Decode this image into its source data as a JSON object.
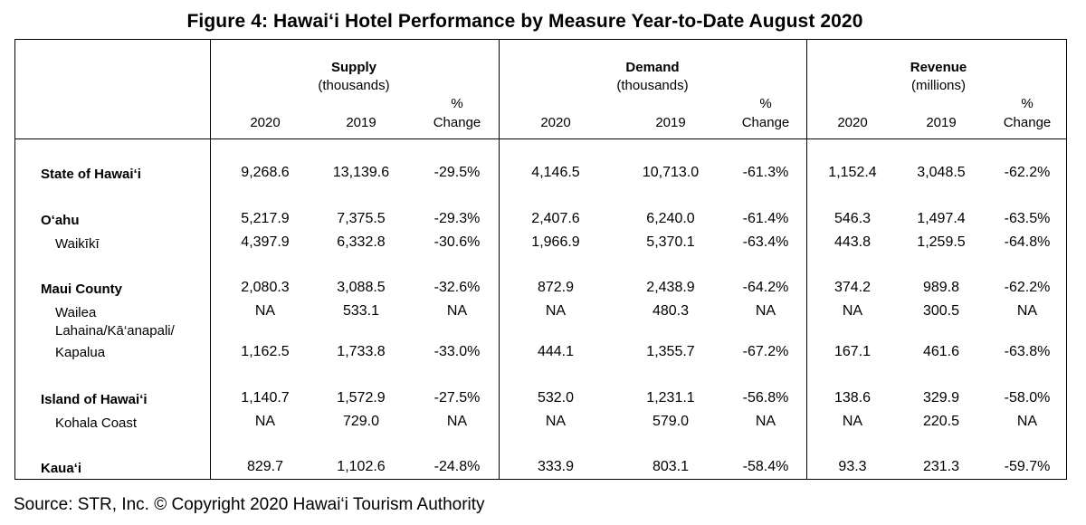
{
  "title": "Figure 4: Hawai‘i Hotel Performance by Measure Year-to-Date August 2020",
  "groups": [
    {
      "title": "Supply",
      "unit": "(thousands)"
    },
    {
      "title": "Demand",
      "unit": "(thousands)"
    },
    {
      "title": "Revenue",
      "unit": "(millions)"
    }
  ],
  "subheaders": {
    "y2020": "2020",
    "y2019": "2019",
    "pct_top": "%",
    "pct_bottom": "Change"
  },
  "rows": [
    {
      "label": "State of Hawai‘i",
      "bold": true,
      "values": [
        "9,268.6",
        "13,139.6",
        "-29.5%",
        "4,146.5",
        "10,713.0",
        "-61.3%",
        "1,152.4",
        "3,048.5",
        "-62.2%"
      ]
    },
    {
      "label": "O‘ahu",
      "bold": true,
      "values": [
        "5,217.9",
        "7,375.5",
        "-29.3%",
        "2,407.6",
        "6,240.0",
        "-61.4%",
        "546.3",
        "1,497.4",
        "-63.5%"
      ]
    },
    {
      "label": "Waikīkī",
      "bold": false,
      "values": [
        "4,397.9",
        "6,332.8",
        "-30.6%",
        "1,966.9",
        "5,370.1",
        "-63.4%",
        "443.8",
        "1,259.5",
        "-64.8%"
      ]
    },
    {
      "label": "Maui County",
      "bold": true,
      "values": [
        "2,080.3",
        "3,088.5",
        "-32.6%",
        "872.9",
        "2,438.9",
        "-64.2%",
        "374.2",
        "989.8",
        "-62.2%"
      ]
    },
    {
      "label": "Wailea",
      "bold": false,
      "values": [
        "NA",
        "533.1",
        "NA",
        "NA",
        "480.3",
        "NA",
        "NA",
        "300.5",
        "NA"
      ]
    },
    {
      "label": "Lahaina/Kā‘anapali/",
      "label2": "Kapalua",
      "bold": false,
      "values": [
        "1,162.5",
        "1,733.8",
        "-33.0%",
        "444.1",
        "1,355.7",
        "-67.2%",
        "167.1",
        "461.6",
        "-63.8%"
      ]
    },
    {
      "label": "Island of Hawai‘i",
      "bold": true,
      "values": [
        "1,140.7",
        "1,572.9",
        "-27.5%",
        "532.0",
        "1,231.1",
        "-56.8%",
        "138.6",
        "329.9",
        "-58.0%"
      ]
    },
    {
      "label": "Kohala Coast",
      "bold": false,
      "values": [
        "NA",
        "729.0",
        "NA",
        "NA",
        "579.0",
        "NA",
        "NA",
        "220.5",
        "NA"
      ]
    },
    {
      "label": "Kaua‘i",
      "bold": true,
      "values": [
        "829.7",
        "1,102.6",
        "-24.8%",
        "333.9",
        "803.1",
        "-58.4%",
        "93.3",
        "231.3",
        "-59.7%"
      ]
    }
  ],
  "source": "Source: STR, Inc. © Copyright 2020 Hawai‘i Tourism Authority"
}
